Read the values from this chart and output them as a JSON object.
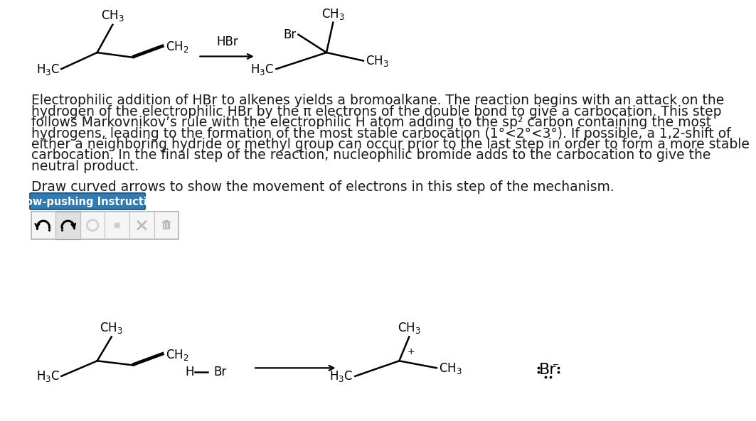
{
  "bg_color": "#ffffff",
  "text_color": "#1a1a1a",
  "paragraph_lines": [
    "Electrophilic addition of HBr to alkenes yields a bromoalkane. The reaction begins with an attack on the",
    "hydrogen of the electrophilic HBr by the π electrons of the double bond to give a carbocation. This step",
    "follows Markovnikov’s rule with the electrophilic H atom adding to the sp² carbon containing the most",
    "hydrogens, leading to the formation of the most stable carbocation (1°<2°<3°). If possible, a 1,2-shift of",
    "either a neighboring hydride or methyl group can occur prior to the last step in order to form a more stable",
    "carbocation. In the final step of the reaction, nucleophilic bromide adds to the carbocation to give the",
    "neutral product."
  ],
  "draw_instruction": "Draw curved arrows to show the movement of electrons in this step of the mechanism.",
  "button_text": "Arrow-pushing Instructions",
  "button_bg": "#2e7bb5",
  "button_text_color": "#ffffff",
  "button_border": "#1a5e96",
  "font_size_body": 13.5,
  "font_size_mol": 12,
  "lw": 1.8
}
